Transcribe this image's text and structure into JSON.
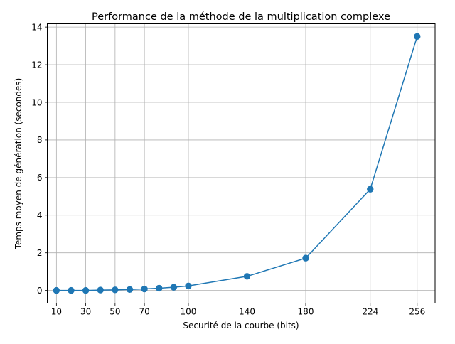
{
  "chart_data": {
    "type": "line",
    "title": "Performance de la méthode de la multiplication complexe",
    "xlabel": "Securité de la courbe (bits)",
    "ylabel": "Temps moyen de génération (secondes)",
    "xlim": [
      3.77,
      268.23
    ],
    "ylim": [
      -0.675,
      14.175
    ],
    "xticks": [
      10,
      30,
      50,
      70,
      100,
      140,
      180,
      224,
      256
    ],
    "xtick_labels": [
      "10",
      "30",
      "50",
      "70",
      "100",
      "140",
      "180",
      "224",
      "256"
    ],
    "yticks": [
      0,
      2,
      4,
      6,
      8,
      10,
      12,
      14
    ],
    "ytick_labels": [
      "0",
      "2",
      "4",
      "6",
      "8",
      "10",
      "12",
      "14"
    ],
    "grid": true,
    "series": [
      {
        "color": "#1f77b4",
        "marker": "circle",
        "x": [
          10,
          20,
          30,
          40,
          50,
          60,
          70,
          80,
          90,
          100,
          140,
          180,
          224,
          256
        ],
        "y": [
          0.0,
          0.0,
          0.0,
          0.02,
          0.03,
          0.05,
          0.08,
          0.12,
          0.17,
          0.24,
          0.75,
          1.72,
          5.38,
          13.5
        ]
      }
    ]
  }
}
